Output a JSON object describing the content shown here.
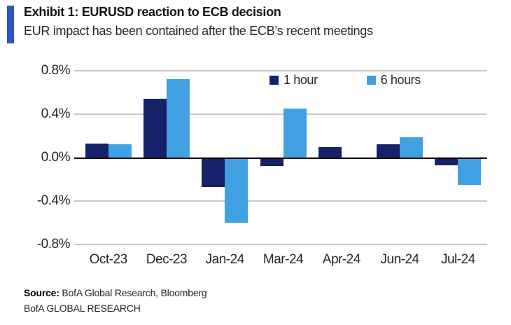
{
  "header": {
    "title": "Exhibit 1: EURUSD reaction to ECB decision",
    "subtitle": "EUR impact has been contained after the ECB’s recent meetings",
    "accent_color": "#2D55C5"
  },
  "footer": {
    "source_label": "Source:",
    "source_text": " BofA Global Research, Bloomberg",
    "brand_line": "BofA GLOBAL RESEARCH"
  },
  "chart_data": {
    "type": "bar",
    "title": "EURUSD reaction to ECB decision",
    "categories": [
      "Oct-23",
      "Dec-23",
      "Jan-24",
      "Mar-24",
      "Apr-24",
      "Jun-24",
      "Jul-24"
    ],
    "series": [
      {
        "name": "1 hour",
        "color": "#152169",
        "values": [
          0.13,
          0.54,
          -0.27,
          -0.08,
          0.1,
          0.12,
          -0.07
        ]
      },
      {
        "name": "6 hours",
        "color": "#41A0E2",
        "values": [
          0.12,
          0.72,
          -0.6,
          0.45,
          -0.01,
          0.19,
          -0.25
        ]
      }
    ],
    "ylim": [
      -0.8,
      0.8
    ],
    "yticks": [
      0.8,
      0.4,
      0.0,
      -0.4,
      -0.8
    ],
    "ytick_labels": [
      "0.8%",
      "0.4%",
      "0.0%",
      "-0.4%",
      "-0.8%"
    ],
    "ytick_suffix": "%",
    "grid": true,
    "legend_position": "top-right",
    "gridline_color": "#C8C8C8",
    "zeroline_color": "#000000"
  }
}
